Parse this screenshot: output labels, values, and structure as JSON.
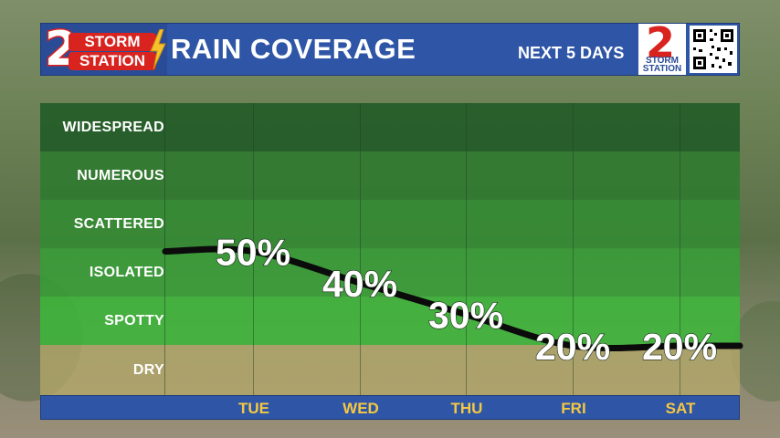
{
  "header": {
    "logo_top": "STORM",
    "logo_bottom": "STATION",
    "logo_number": "2",
    "title": "RAIN COVERAGE",
    "subtitle": "NEXT 5 DAYS",
    "right_logo_number": "2",
    "right_logo_top": "STORM",
    "right_logo_bottom": "STATION",
    "qr_icon": "qr-code-icon"
  },
  "colors": {
    "header_blue": "#2f56a6",
    "tick_yellow": "#f4c842",
    "brand_red": "#d8231f",
    "widespread": "#1f5a26",
    "numerous": "#2a7a2c",
    "scattered": "#2f8e32",
    "isolated": "#34a136",
    "spotty": "#3cb83a",
    "dry": "#b7aa6a"
  },
  "chart_data": {
    "type": "line",
    "title": "RAIN COVERAGE",
    "subtitle": "NEXT 5 DAYS",
    "categories": [
      "TUE",
      "WED",
      "THU",
      "FRI",
      "SAT"
    ],
    "series": [
      {
        "values": [
          50,
          40,
          30,
          20,
          20
        ]
      }
    ],
    "data_labels": [
      "50%",
      "40%",
      "30%",
      "20%",
      "20%"
    ],
    "y_categories": [
      "WIDESPREAD",
      "NUMEROUS",
      "SCATTERED",
      "ISOLATED",
      "SPOTTY",
      "DRY"
    ],
    "ylim": [
      0,
      100
    ],
    "grid": true,
    "legend": "none"
  }
}
